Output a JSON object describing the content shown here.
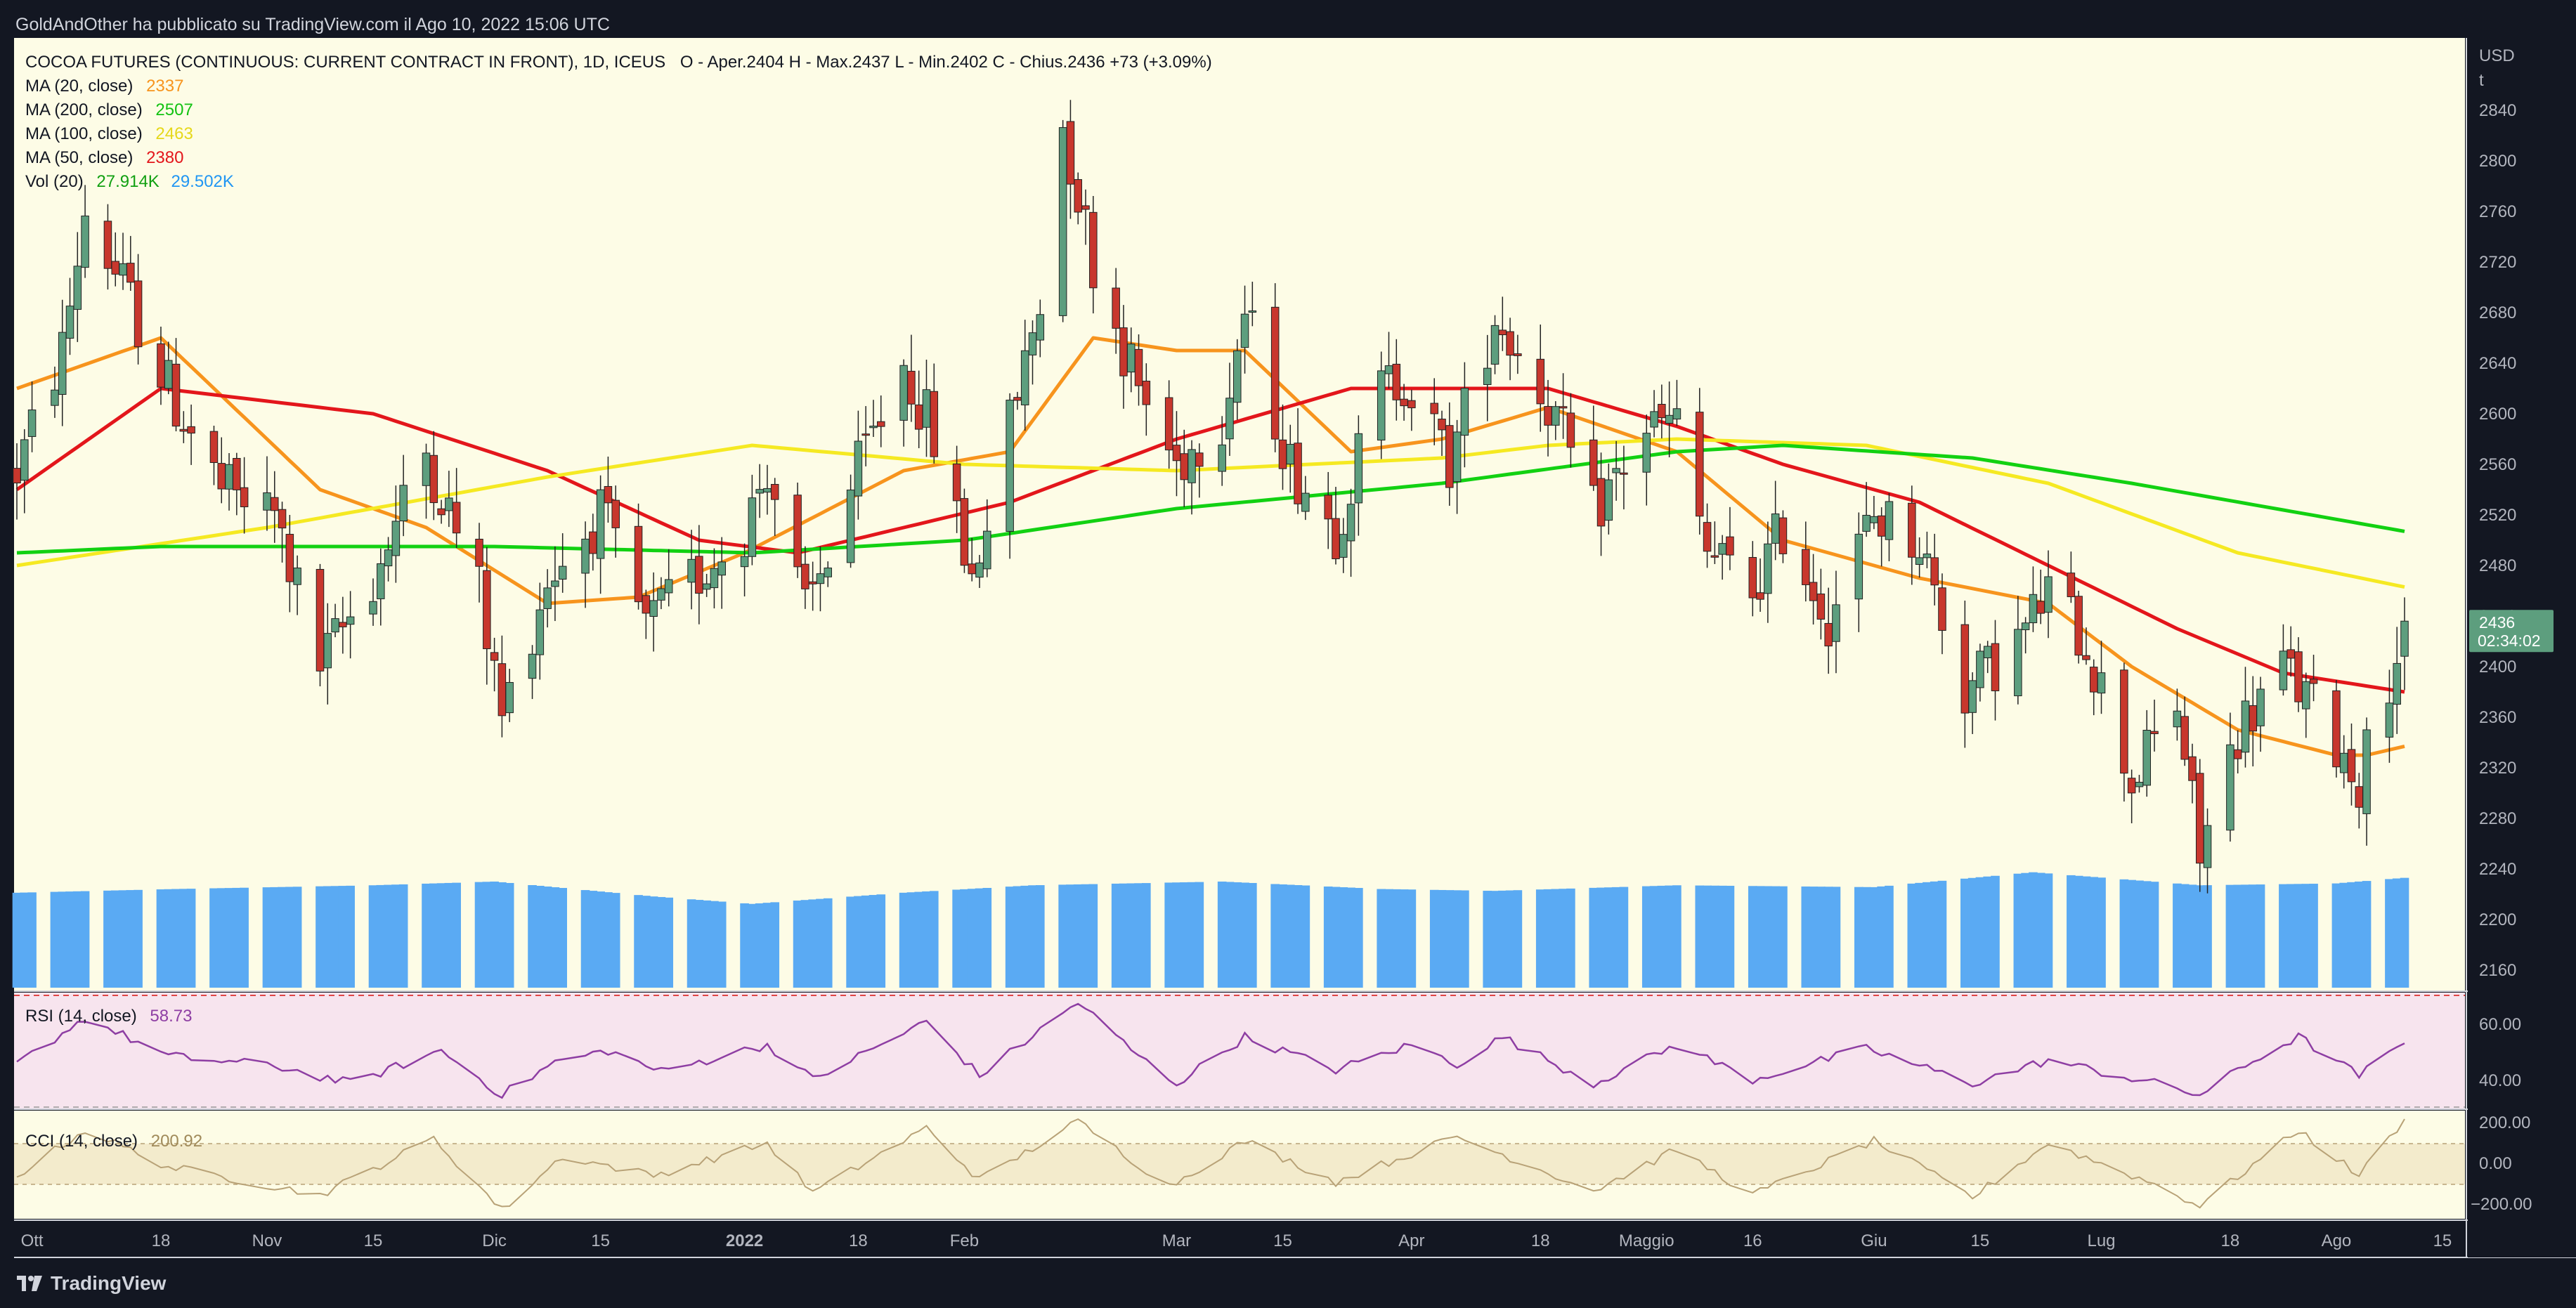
{
  "publisher_line": "GoldAndOther ha pubblicato su TradingView.com il Ago 10, 2022 15:06 UTC",
  "brand": "TradingView",
  "legend": {
    "symbol": "COCOA FUTURES (CONTINUOUS: CURRENT CONTRACT IN FRONT), 1D, ICEUS",
    "ohlc": "O - Aper.2404  H - Max.2437  L - Min.2402  C - Chius.2436  +73 (+3.09%)",
    "ma20": {
      "label": "MA (20, close)",
      "value": "2337",
      "color": "#f7941d"
    },
    "ma200": {
      "label": "MA (200, close)",
      "value": "2507",
      "color": "#12d112"
    },
    "ma100": {
      "label": "MA (100, close)",
      "value": "2463",
      "color": "#f5e922"
    },
    "ma50": {
      "label": "MA (50, close)",
      "value": "2380",
      "color": "#e3161b"
    },
    "vol": {
      "label": "Vol (20)",
      "value1": "27.914K",
      "value2": "29.502K"
    }
  },
  "price_axis": {
    "currency": "USD",
    "unit_mark": "t",
    "ticks": [
      "2840",
      "2800",
      "2760",
      "2720",
      "2680",
      "2640",
      "2600",
      "2560",
      "2520",
      "2480",
      "2440",
      "2400",
      "2360",
      "2320",
      "2280",
      "2240",
      "2200",
      "2160"
    ],
    "last_price": "2436",
    "countdown": "02:34:02"
  },
  "rsi": {
    "label": "RSI (14, close)",
    "value": "58.73",
    "ticks": [
      "60.00",
      "40.00"
    ]
  },
  "cci": {
    "label": "CCI (14, close)",
    "value": "200.92",
    "ticks": [
      "200.00",
      "0.00",
      "−200.00"
    ]
  },
  "time_axis": [
    "Ott",
    "18",
    "Nov",
    "15",
    "Dic",
    "15",
    "2022",
    "18",
    "Feb",
    "Mar",
    "15",
    "Apr",
    "18",
    "Maggio",
    "16",
    "Giu",
    "15",
    "Lug",
    "18",
    "Ago",
    "15"
  ],
  "colors": {
    "background": "#131722",
    "pane": "#fdfce6",
    "rsi_pane": "#f7e4ee",
    "up_candle": "#5d9e7e",
    "down_candle": "#c8372d",
    "volume": "#5aaaf3",
    "rsi_line": "#8e3ea3",
    "cci_line": "#b8a277",
    "axis_text": "#b2b5be"
  },
  "chart_data": {
    "type": "line",
    "title": "COCOA FUTURES (CONTINUOUS: CURRENT CONTRACT IN FRONT), 1D, ICEUS",
    "ylabel": "USD",
    "ylim": [
      2140,
      2860
    ],
    "x_start": "2021-09-29",
    "x_end": "2022-08-10",
    "price_anchors": [
      [
        "2021-09-29",
        2555
      ],
      [
        "2021-10-05",
        2650
      ],
      [
        "2021-10-08",
        2760
      ],
      [
        "2021-10-13",
        2700
      ],
      [
        "2021-10-19",
        2620
      ],
      [
        "2021-10-26",
        2540
      ],
      [
        "2021-11-02",
        2520
      ],
      [
        "2021-11-08",
        2400
      ],
      [
        "2021-11-15",
        2470
      ],
      [
        "2021-11-22",
        2570
      ],
      [
        "2021-11-29",
        2460
      ],
      [
        "2021-12-02",
        2360
      ],
      [
        "2021-12-08",
        2470
      ],
      [
        "2021-12-15",
        2520
      ],
      [
        "2021-12-21",
        2430
      ],
      [
        "2022-01-03",
        2510
      ],
      [
        "2022-01-06",
        2560
      ],
      [
        "2022-01-11",
        2440
      ],
      [
        "2022-01-17",
        2540
      ],
      [
        "2022-01-24",
        2640
      ],
      [
        "2022-01-28",
        2580
      ],
      [
        "2022-02-02",
        2470
      ],
      [
        "2022-02-07",
        2590
      ],
      [
        "2022-02-11",
        2690
      ],
      [
        "2022-02-14",
        2830
      ],
      [
        "2022-02-18",
        2720
      ],
      [
        "2022-02-24",
        2620
      ],
      [
        "2022-03-01",
        2560
      ],
      [
        "2022-03-07",
        2600
      ],
      [
        "2022-03-10",
        2680
      ],
      [
        "2022-03-16",
        2560
      ],
      [
        "2022-03-22",
        2510
      ],
      [
        "2022-03-28",
        2620
      ],
      [
        "2022-03-31",
        2630
      ],
      [
        "2022-04-06",
        2560
      ],
      [
        "2022-04-12",
        2680
      ],
      [
        "2022-04-19",
        2610
      ],
      [
        "2022-04-25",
        2520
      ],
      [
        "2022-05-02",
        2590
      ],
      [
        "2022-05-06",
        2590
      ],
      [
        "2022-05-10",
        2490
      ],
      [
        "2022-05-16",
        2460
      ],
      [
        "2022-05-20",
        2510
      ],
      [
        "2022-05-26",
        2440
      ],
      [
        "2022-06-01",
        2520
      ],
      [
        "2022-06-07",
        2500
      ],
      [
        "2022-06-13",
        2380
      ],
      [
        "2022-06-20",
        2420
      ],
      [
        "2022-06-24",
        2460
      ],
      [
        "2022-06-29",
        2420
      ],
      [
        "2022-07-05",
        2310
      ],
      [
        "2022-07-11",
        2370
      ],
      [
        "2022-07-14",
        2250
      ],
      [
        "2022-07-19",
        2350
      ],
      [
        "2022-07-25",
        2400
      ],
      [
        "2022-08-01",
        2340
      ],
      [
        "2022-08-04",
        2310
      ],
      [
        "2022-08-10",
        2436
      ]
    ],
    "series": [
      {
        "name": "MA (20, close)",
        "color": "#f7941d",
        "anchors": [
          [
            "2021-09-29",
            2620
          ],
          [
            "2021-10-18",
            2660
          ],
          [
            "2021-11-08",
            2540
          ],
          [
            "2021-11-22",
            2510
          ],
          [
            "2021-12-08",
            2450
          ],
          [
            "2021-12-20",
            2455
          ],
          [
            "2022-01-03",
            2490
          ],
          [
            "2022-01-24",
            2555
          ],
          [
            "2022-02-07",
            2570
          ],
          [
            "2022-02-18",
            2660
          ],
          [
            "2022-03-01",
            2650
          ],
          [
            "2022-03-10",
            2650
          ],
          [
            "2022-03-24",
            2570
          ],
          [
            "2022-04-05",
            2580
          ],
          [
            "2022-04-19",
            2605
          ],
          [
            "2022-05-06",
            2570
          ],
          [
            "2022-05-20",
            2500
          ],
          [
            "2022-06-07",
            2470
          ],
          [
            "2022-06-24",
            2450
          ],
          [
            "2022-07-05",
            2400
          ],
          [
            "2022-07-19",
            2350
          ],
          [
            "2022-08-01",
            2330
          ],
          [
            "2022-08-05",
            2330
          ],
          [
            "2022-08-10",
            2337
          ]
        ]
      },
      {
        "name": "MA (50, close)",
        "color": "#e3161b",
        "anchors": [
          [
            "2021-09-29",
            2540
          ],
          [
            "2021-10-18",
            2620
          ],
          [
            "2021-11-15",
            2600
          ],
          [
            "2021-12-08",
            2555
          ],
          [
            "2021-12-28",
            2500
          ],
          [
            "2022-01-10",
            2490
          ],
          [
            "2022-01-24",
            2510
          ],
          [
            "2022-02-07",
            2530
          ],
          [
            "2022-03-01",
            2580
          ],
          [
            "2022-03-24",
            2620
          ],
          [
            "2022-04-19",
            2620
          ],
          [
            "2022-05-06",
            2590
          ],
          [
            "2022-05-20",
            2560
          ],
          [
            "2022-06-07",
            2530
          ],
          [
            "2022-06-24",
            2480
          ],
          [
            "2022-07-11",
            2430
          ],
          [
            "2022-07-25",
            2395
          ],
          [
            "2022-08-10",
            2380
          ]
        ]
      },
      {
        "name": "MA (100, close)",
        "color": "#f5e922",
        "anchors": [
          [
            "2021-09-29",
            2480
          ],
          [
            "2021-11-01",
            2510
          ],
          [
            "2021-12-08",
            2550
          ],
          [
            "2022-01-04",
            2575
          ],
          [
            "2022-02-01",
            2560
          ],
          [
            "2022-03-01",
            2555
          ],
          [
            "2022-04-05",
            2565
          ],
          [
            "2022-04-19",
            2575
          ],
          [
            "2022-05-06",
            2580
          ],
          [
            "2022-05-31",
            2575
          ],
          [
            "2022-06-24",
            2545
          ],
          [
            "2022-07-19",
            2490
          ],
          [
            "2022-08-10",
            2463
          ]
        ]
      },
      {
        "name": "MA (200, close)",
        "color": "#12d112",
        "anchors": [
          [
            "2021-09-29",
            2490
          ],
          [
            "2021-10-18",
            2495
          ],
          [
            "2021-12-01",
            2495
          ],
          [
            "2022-01-04",
            2490
          ],
          [
            "2022-02-01",
            2500
          ],
          [
            "2022-03-01",
            2525
          ],
          [
            "2022-04-05",
            2545
          ],
          [
            "2022-05-06",
            2570
          ],
          [
            "2022-05-20",
            2575
          ],
          [
            "2022-06-14",
            2565
          ],
          [
            "2022-07-05",
            2545
          ],
          [
            "2022-08-10",
            2507
          ]
        ]
      }
    ],
    "volume_anchors": [
      [
        "2021-09-29",
        25.5
      ],
      [
        "2021-10-20",
        26.5
      ],
      [
        "2021-11-15",
        27.5
      ],
      [
        "2021-12-01",
        28.5
      ],
      [
        "2021-12-22",
        24.5
      ],
      [
        "2022-01-04",
        22.5
      ],
      [
        "2022-01-24",
        25.5
      ],
      [
        "2022-02-10",
        27.5
      ],
      [
        "2022-03-07",
        28.5
      ],
      [
        "2022-03-28",
        26.5
      ],
      [
        "2022-04-12",
        26.0
      ],
      [
        "2022-05-06",
        27.5
      ],
      [
        "2022-06-01",
        27.0
      ],
      [
        "2022-06-22",
        31.0
      ],
      [
        "2022-07-14",
        27.5
      ],
      [
        "2022-08-01",
        28.0
      ],
      [
        "2022-08-10",
        29.5
      ]
    ],
    "rsi_range": [
      25,
      85
    ],
    "rsi_anchors": [
      [
        "2021-09-29",
        48
      ],
      [
        "2021-10-08",
        72
      ],
      [
        "2021-10-19",
        52
      ],
      [
        "2021-11-02",
        47
      ],
      [
        "2021-11-12",
        38
      ],
      [
        "2021-11-24",
        55
      ],
      [
        "2021-12-02",
        32
      ],
      [
        "2021-12-09",
        49
      ],
      [
        "2021-12-16",
        55
      ],
      [
        "2021-12-23",
        44
      ],
      [
        "2022-01-06",
        58
      ],
      [
        "2022-01-12",
        40
      ],
      [
        "2022-01-27",
        70
      ],
      [
        "2022-02-03",
        42
      ],
      [
        "2022-02-16",
        80
      ],
      [
        "2022-02-24",
        52
      ],
      [
        "2022-03-01",
        38
      ],
      [
        "2022-03-10",
        62
      ],
      [
        "2022-03-22",
        45
      ],
      [
        "2022-04-01",
        58
      ],
      [
        "2022-04-07",
        48
      ],
      [
        "2022-04-13",
        62
      ],
      [
        "2022-04-25",
        38
      ],
      [
        "2022-05-06",
        58
      ],
      [
        "2022-05-16",
        40
      ],
      [
        "2022-05-31",
        56
      ],
      [
        "2022-06-14",
        38
      ],
      [
        "2022-06-24",
        50
      ],
      [
        "2022-07-08",
        38
      ],
      [
        "2022-07-14",
        32
      ],
      [
        "2022-07-22",
        52
      ],
      [
        "2022-07-27",
        62
      ],
      [
        "2022-08-04",
        42
      ],
      [
        "2022-08-10",
        58.73
      ]
    ],
    "cci_range": [
      -260,
      240
    ],
    "cci_anchors": [
      [
        "2021-09-29",
        -60
      ],
      [
        "2021-10-08",
        150
      ],
      [
        "2021-10-19",
        -20
      ],
      [
        "2021-11-08",
        -150
      ],
      [
        "2021-11-23",
        110
      ],
      [
        "2021-12-02",
        -220
      ],
      [
        "2021-12-10",
        30
      ],
      [
        "2021-12-22",
        -60
      ],
      [
        "2022-01-06",
        90
      ],
      [
        "2022-01-12",
        -140
      ],
      [
        "2022-01-27",
        160
      ],
      [
        "2022-02-03",
        -80
      ],
      [
        "2022-02-16",
        190
      ],
      [
        "2022-02-28",
        -110
      ],
      [
        "2022-03-10",
        100
      ],
      [
        "2022-03-22",
        -90
      ],
      [
        "2022-04-07",
        120
      ],
      [
        "2022-04-25",
        -130
      ],
      [
        "2022-05-06",
        60
      ],
      [
        "2022-05-16",
        -150
      ],
      [
        "2022-06-01",
        100
      ],
      [
        "2022-06-14",
        -160
      ],
      [
        "2022-06-24",
        90
      ],
      [
        "2022-07-08",
        -100
      ],
      [
        "2022-07-14",
        -200
      ],
      [
        "2022-07-27",
        150
      ],
      [
        "2022-08-04",
        -60
      ],
      [
        "2022-08-10",
        200.92
      ]
    ]
  }
}
